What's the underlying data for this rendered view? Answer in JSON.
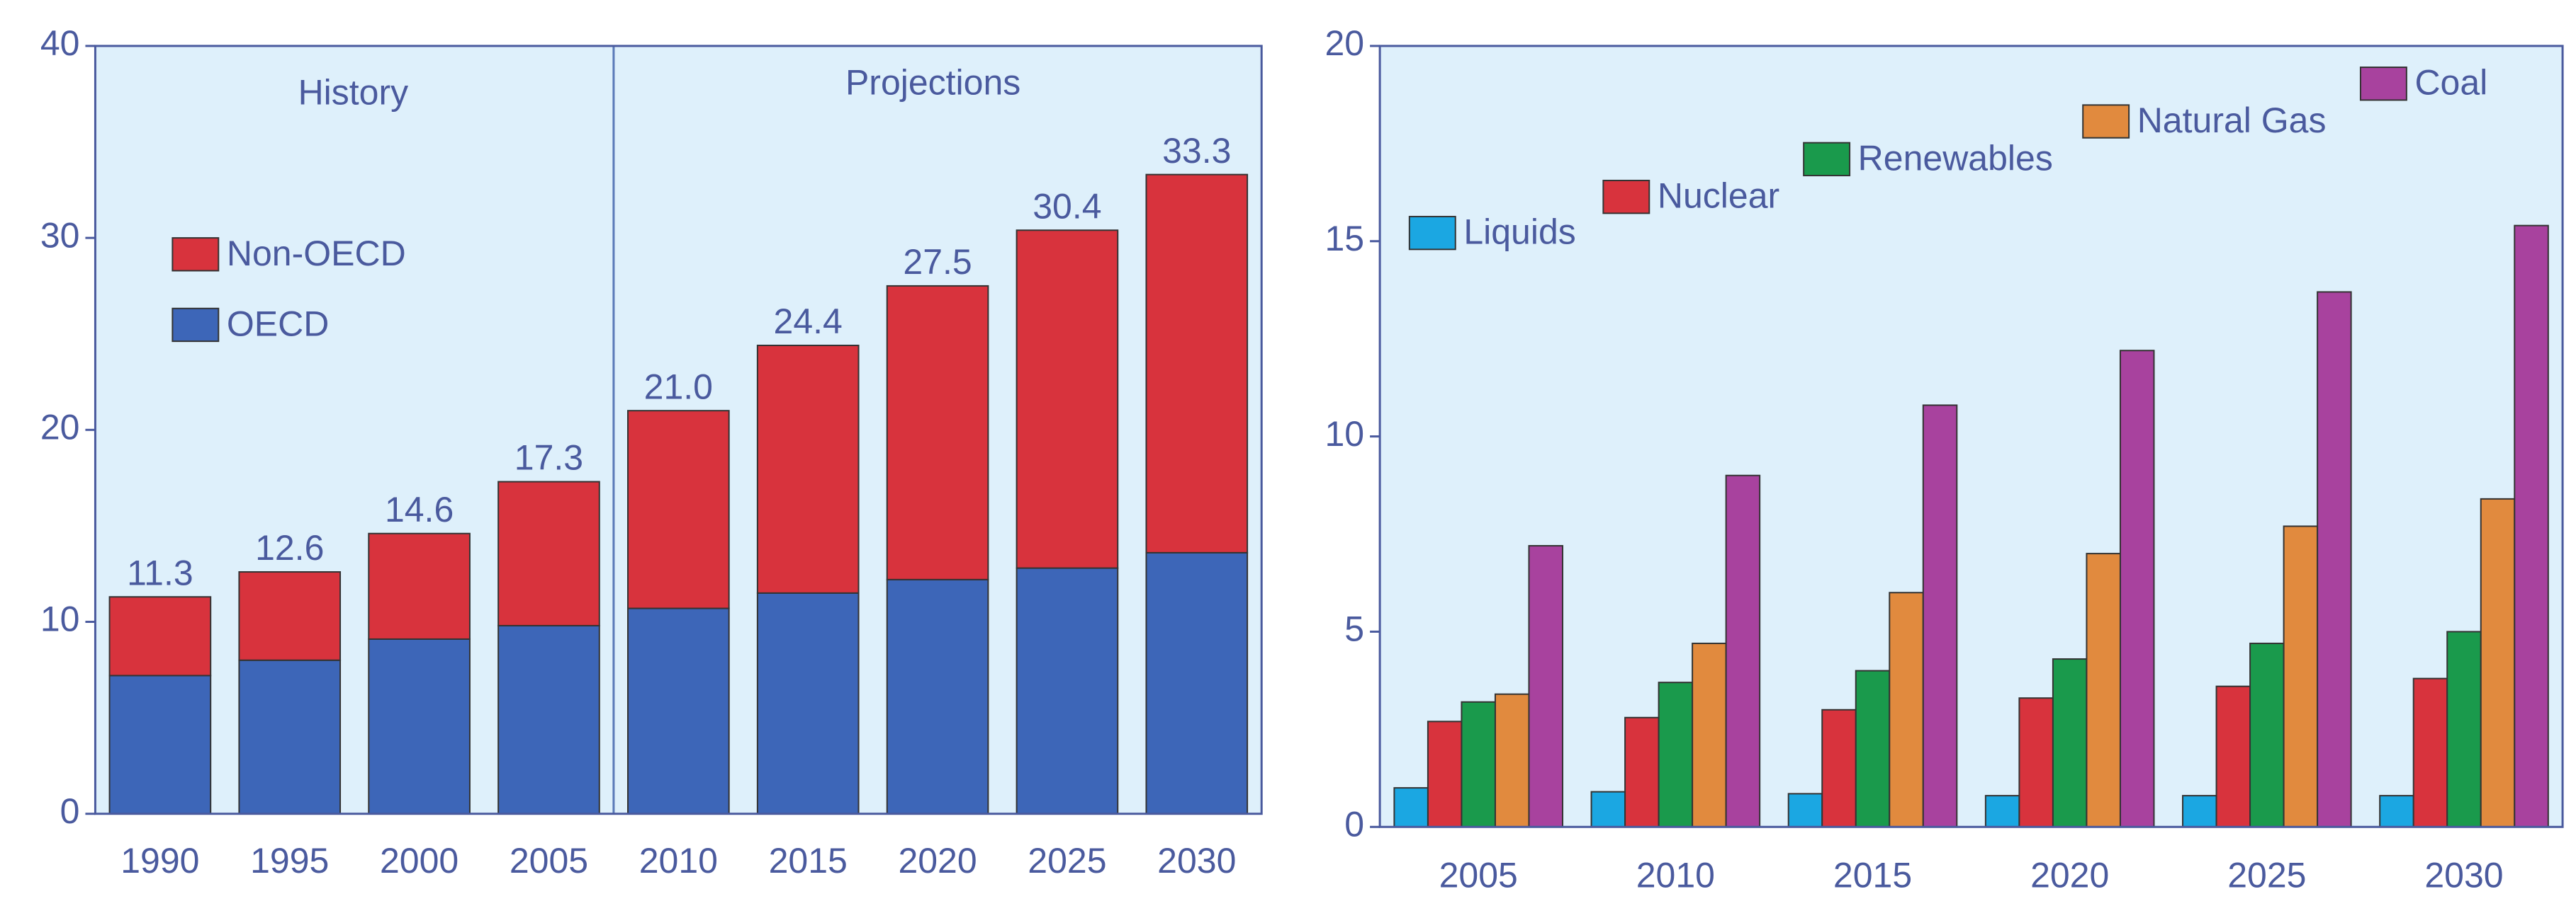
{
  "chart_data": [
    {
      "type": "stacked-bar",
      "annotations": [
        "History",
        "Projections"
      ],
      "categories": [
        "1990",
        "1995",
        "2000",
        "2005",
        "2010",
        "2015",
        "2020",
        "2025",
        "2030"
      ],
      "series": [
        {
          "name": "OECD",
          "color": "#3d66b8",
          "values": [
            7.2,
            8.0,
            9.1,
            9.8,
            10.7,
            11.5,
            12.2,
            12.8,
            13.6
          ]
        },
        {
          "name": "Non-OECD",
          "color": "#d8333d",
          "values": [
            4.1,
            4.6,
            5.5,
            7.5,
            10.3,
            12.9,
            15.3,
            17.6,
            19.7
          ]
        }
      ],
      "totals": {
        "values": [
          11.3,
          12.6,
          14.6,
          17.3,
          21.0,
          24.4,
          27.5,
          30.4,
          33.3
        ],
        "value_labels": [
          "11.3",
          "12.6",
          "14.6",
          "17.3",
          "21.0",
          "24.4",
          "27.5",
          "30.4",
          "33.3"
        ]
      },
      "ylim": [
        0,
        40
      ],
      "yticks": [
        0,
        10,
        20,
        30,
        40
      ]
    },
    {
      "type": "grouped-bar",
      "categories": [
        "2005",
        "2010",
        "2015",
        "2020",
        "2025",
        "2030"
      ],
      "series": [
        {
          "name": "Liquids",
          "color": "#1ba7e2",
          "values": [
            1.0,
            0.9,
            0.85,
            0.8,
            0.8,
            0.8
          ]
        },
        {
          "name": "Nuclear",
          "color": "#d8333d",
          "values": [
            2.7,
            2.8,
            3.0,
            3.3,
            3.6,
            3.8
          ]
        },
        {
          "name": "Renewables",
          "color": "#1a9a4c",
          "values": [
            3.2,
            3.7,
            4.0,
            4.3,
            4.7,
            5.0
          ]
        },
        {
          "name": "Natural Gas",
          "color": "#e18a3e",
          "values": [
            3.4,
            4.7,
            6.0,
            7.0,
            7.7,
            8.4
          ]
        },
        {
          "name": "Coal",
          "color": "#a8429e",
          "values": [
            7.2,
            9.0,
            10.8,
            12.2,
            13.7,
            15.4
          ]
        }
      ],
      "ylim": [
        0,
        20
      ],
      "yticks": [
        0,
        5,
        10,
        15,
        20
      ]
    }
  ]
}
